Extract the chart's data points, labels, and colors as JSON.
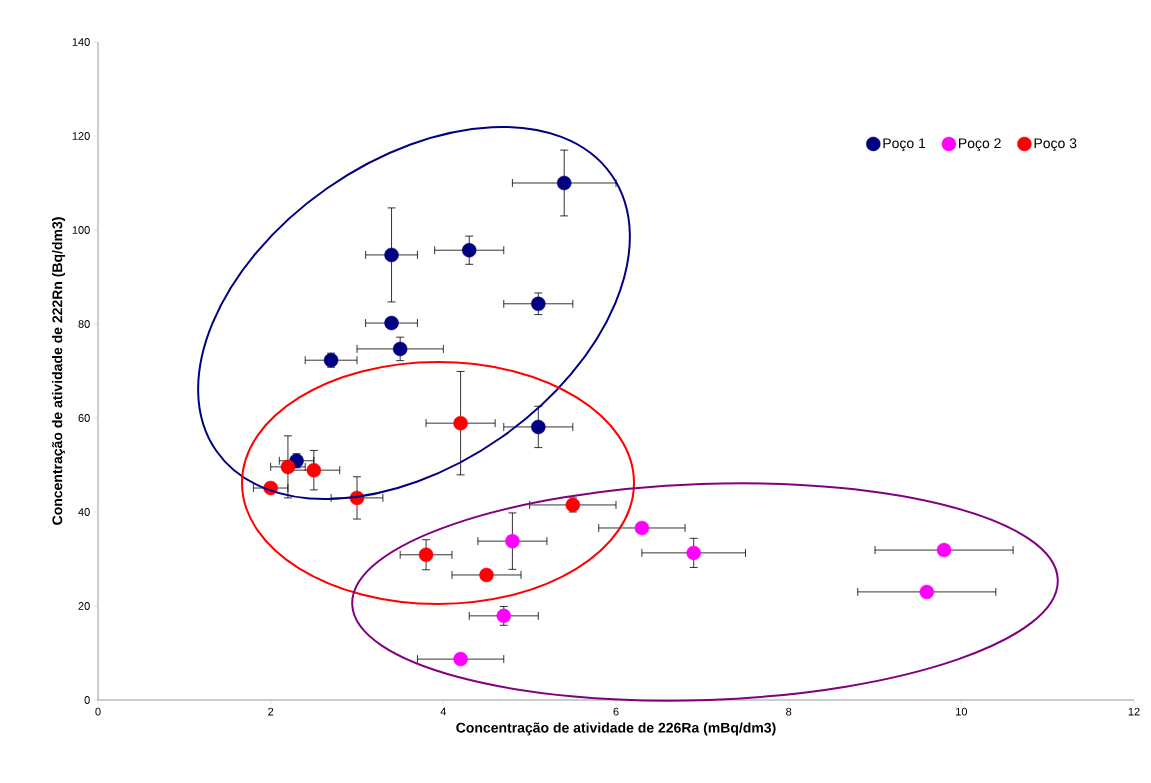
{
  "chart_data": {
    "type": "scatter",
    "xlabel": "Concentração de atividade de 226Ra (mBq/dm3)",
    "ylabel": "Concentração de atividade de 222Rn (Bq/dm3)",
    "xlim": [
      0,
      12
    ],
    "ylim": [
      0,
      140
    ],
    "xticks": [
      0,
      2,
      4,
      6,
      8,
      10,
      12
    ],
    "yticks": [
      0,
      20,
      40,
      60,
      80,
      100,
      120,
      140
    ],
    "legend": "top right",
    "marker": "circle",
    "series": [
      {
        "name": "Poço 1",
        "color": "#000080",
        "x": [
          5.4,
          3.4,
          4.3,
          5.1,
          3.4,
          3.5,
          2.7,
          5.1,
          2.3
        ],
        "values": [
          110,
          94.7,
          95.7,
          84.3,
          80.2,
          74.7,
          72.3,
          58.1,
          50.9
        ],
        "xerrors": [
          0.6,
          0.3,
          0.4,
          0.4,
          0.3,
          0.5,
          0.3,
          0.4,
          0.2
        ],
        "errors": [
          7,
          10,
          3,
          2.3,
          null,
          2.5,
          1.5,
          4.4,
          1.5
        ]
      },
      {
        "name": "Poço 2",
        "color": "#ff00ff",
        "x": [
          4.8,
          6.3,
          6.9,
          9.8,
          9.6,
          4.7,
          4.2
        ],
        "values": [
          33.8,
          36.6,
          31.3,
          31.9,
          23,
          17.9,
          8.7
        ],
        "xerrors": [
          0.4,
          0.5,
          0.6,
          0.8,
          0.8,
          0.4,
          0.5
        ],
        "errors": [
          6,
          null,
          3.1,
          null,
          null,
          2,
          null
        ]
      },
      {
        "name": "Poço 3",
        "color": "#ff0000",
        "x": [
          4.2,
          2.2,
          2.5,
          2,
          3,
          5.5,
          3.8,
          4.5
        ],
        "values": [
          58.9,
          49.6,
          48.9,
          45.1,
          43,
          41.5,
          30.9,
          26.6
        ],
        "xerrors": [
          0.4,
          0.2,
          0.3,
          0.2,
          0.3,
          0.5,
          0.3,
          0.4
        ],
        "errors": [
          11,
          6.6,
          4.2,
          null,
          4.5,
          1.5,
          3.2,
          null
        ]
      }
    ]
  }
}
